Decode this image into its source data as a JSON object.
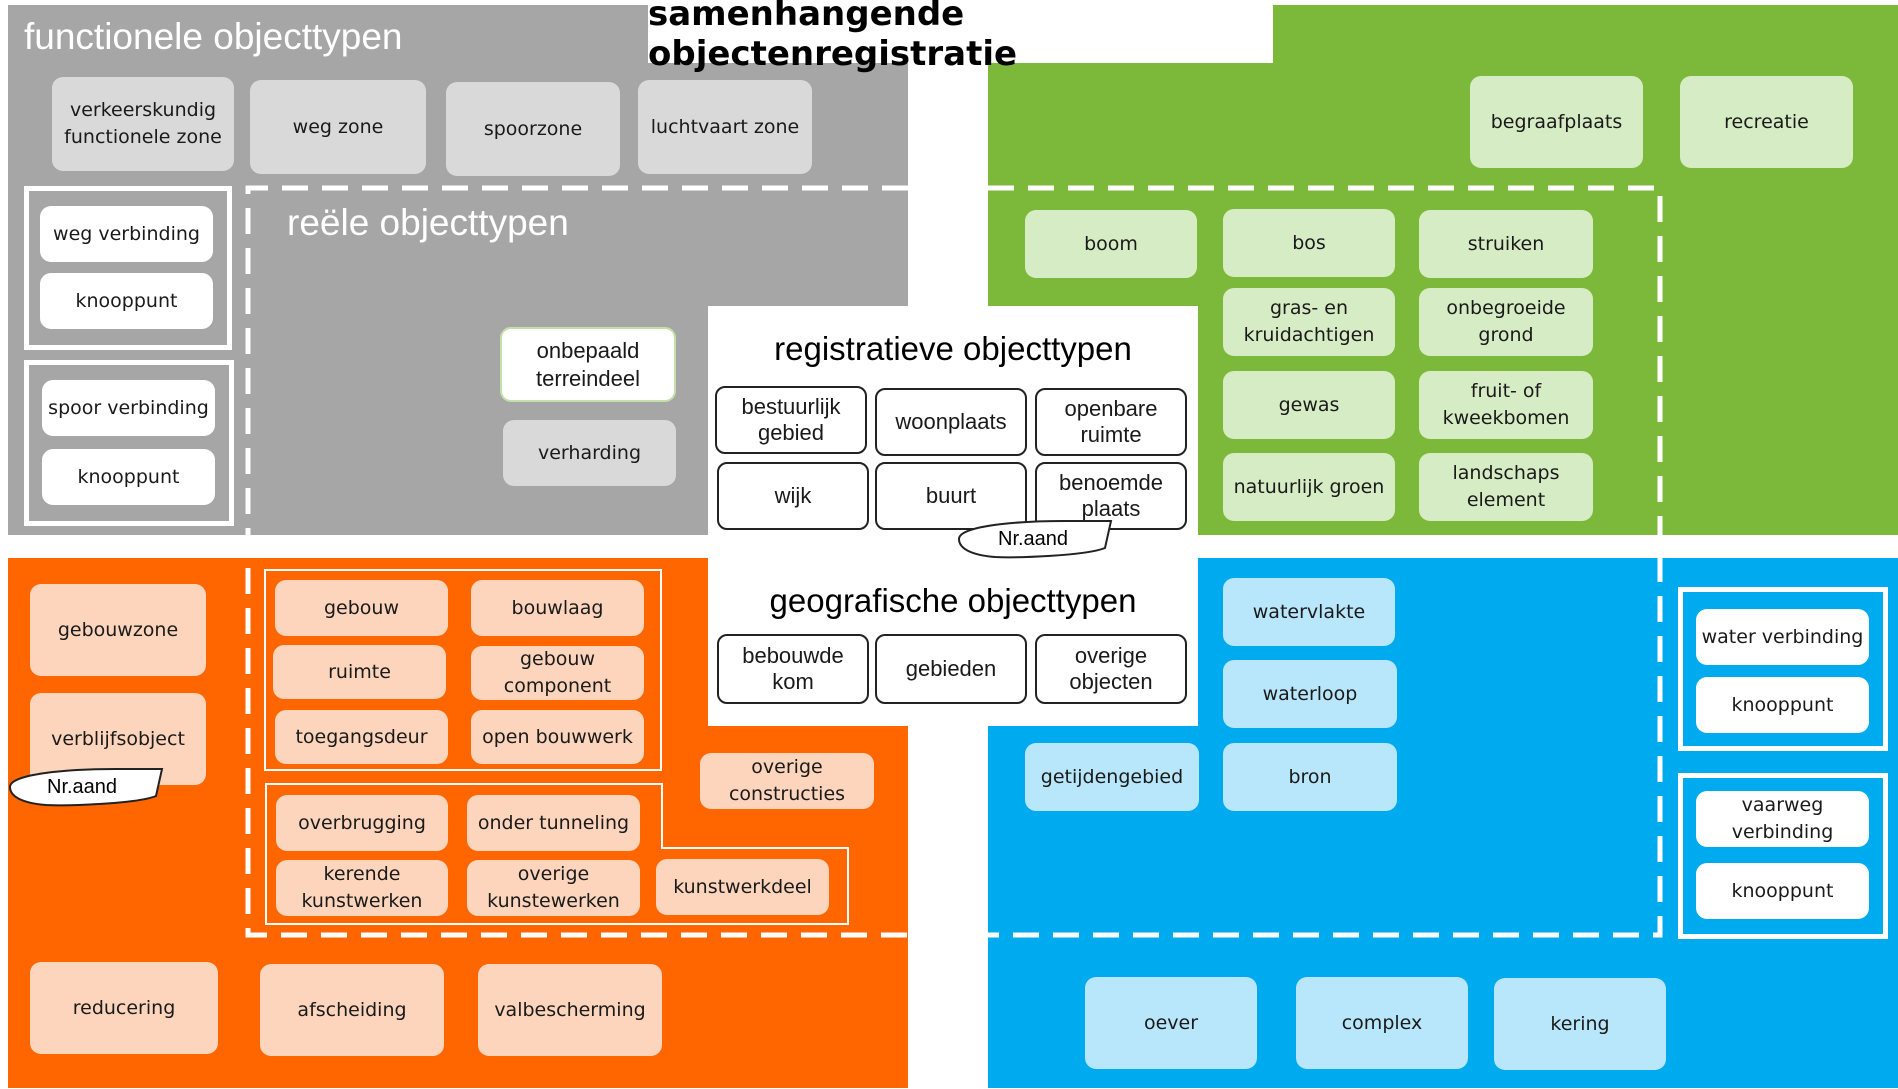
{
  "title": "samenhangende objectenregistratie",
  "sections": {
    "functioneel": "functionele objecttypen",
    "reeel": "reële objecttypen",
    "registratief": "registratieve objecttypen",
    "geografisch": "geografische objecttypen"
  },
  "grey": {
    "functional": [
      "verkeerskundig functionele zone",
      "weg zone",
      "spoorzone",
      "luchtvaart zone"
    ],
    "weg": [
      "weg verbinding",
      "knooppunt"
    ],
    "spoor": [
      "spoor verbinding",
      "knooppunt"
    ],
    "onbepaald": "onbepaald terreindeel",
    "verharding": "verharding"
  },
  "green": {
    "top": [
      "begraafplaats",
      "recreatie"
    ],
    "grid": [
      "boom",
      "bos",
      "struiken",
      "gras- en kruidachtigen",
      "onbegroeide grond",
      "gewas",
      "fruit- of kweekbomen",
      "natuurlijk groen",
      "landschaps element"
    ]
  },
  "registratief": [
    "bestuurlijk gebied",
    "woonplaats",
    "openbare ruimte",
    "wijk",
    "buurt",
    "benoemde plaats"
  ],
  "geografisch": [
    "bebouwde kom",
    "gebieden",
    "overige objecten"
  ],
  "nr_aand": "Nr.aand",
  "orange": {
    "left": [
      "gebouwzone",
      "verblijfsobject"
    ],
    "gebouw": [
      "gebouw",
      "bouwlaag",
      "ruimte",
      "gebouw component",
      "toegangsdeur",
      "open bouwwerk"
    ],
    "kunstwerk": [
      "overbrugging",
      "onder tunneling",
      "kerende kunstwerken",
      "overige kunstewerken",
      "kunstwerkdeel"
    ],
    "overige": "overige constructies",
    "bottom": [
      "reducering",
      "afscheiding",
      "valbescherming"
    ]
  },
  "blue": {
    "center": [
      "watervlakte",
      "waterloop",
      "getijdengebied",
      "bron"
    ],
    "water": [
      "water verbinding",
      "knooppunt"
    ],
    "vaarweg": [
      "vaarweg verbinding",
      "knooppunt"
    ],
    "bottom": [
      "oever",
      "complex",
      "kering"
    ]
  }
}
